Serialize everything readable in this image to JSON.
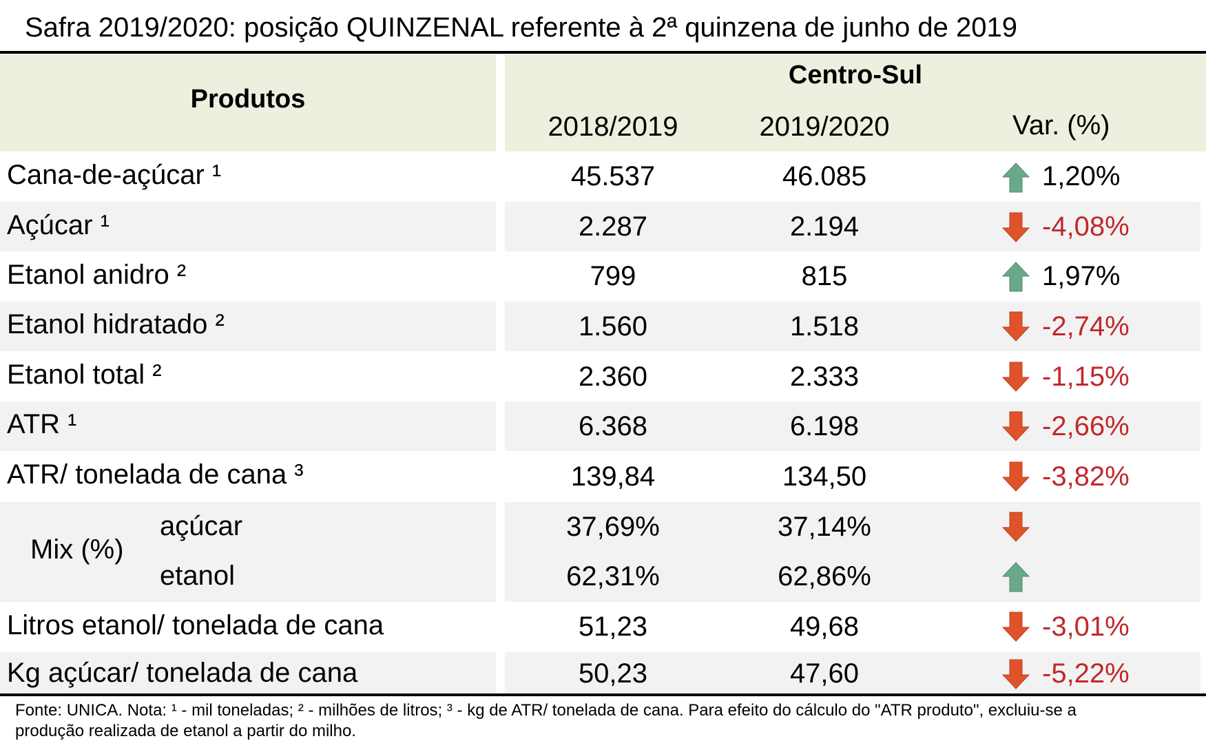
{
  "title": "Safra 2019/2020: posição QUINZENAL referente à 2ª quinzena de junho de 2019",
  "header": {
    "produtos": "Produtos",
    "region": "Centro-Sul",
    "col1": "2018/2019",
    "col2": "2019/2020",
    "col3": "Var. (%)"
  },
  "rows": [
    {
      "label": "Cana-de-açúcar ¹",
      "v1": "45.537",
      "v2": "46.085",
      "dir": "up",
      "var": "1,20%"
    },
    {
      "label": "Açúcar ¹",
      "v1": "2.287",
      "v2": "2.194",
      "dir": "down",
      "var": "-4,08%"
    },
    {
      "label": "Etanol anidro ²",
      "v1": "799",
      "v2": "815",
      "dir": "up",
      "var": "1,97%"
    },
    {
      "label": "Etanol hidratado ²",
      "v1": "1.560",
      "v2": "1.518",
      "dir": "down",
      "var": "-2,74%"
    },
    {
      "label": "Etanol total ²",
      "v1": "2.360",
      "v2": "2.333",
      "dir": "down",
      "var": "-1,15%"
    },
    {
      "label": "ATR ¹",
      "v1": "6.368",
      "v2": "6.198",
      "dir": "down",
      "var": "-2,66%"
    },
    {
      "label": "ATR/ tonelada de cana ³",
      "v1": "139,84",
      "v2": "134,50",
      "dir": "down",
      "var": "-3,82%"
    }
  ],
  "mix": {
    "label": "Mix (%)",
    "acucar": {
      "label": "açúcar",
      "v1": "37,69%",
      "v2": "37,14%",
      "dir": "down"
    },
    "etanol": {
      "label": "etanol",
      "v1": "62,31%",
      "v2": "62,86%",
      "dir": "up"
    }
  },
  "rows_after": [
    {
      "label": "Litros etanol/ tonelada de cana",
      "v1": "51,23",
      "v2": "49,68",
      "dir": "down",
      "var": "-3,01%"
    },
    {
      "label": "Kg açúcar/ tonelada de cana",
      "v1": "50,23",
      "v2": "47,60",
      "dir": "down",
      "var": "-5,22%"
    }
  ],
  "footnote": {
    "line1": "Fonte: UNICA. Nota: ¹ - mil toneladas; ² - milhões de litros; ³ - kg de ATR/ tonelada de cana. Para efeito do cálculo do \"ATR produto\", excluiu-se a",
    "line2": "produção realizada de etanol a partir do milho."
  },
  "colors": {
    "up_arrow": "#6aa88a",
    "down_arrow": "#e0532a",
    "negative_text": "#c0282b",
    "header_bg": "#ebf1de",
    "alt_row_bg": "#f2f2f2"
  },
  "icons": {
    "up": "arrow-up-icon",
    "down": "arrow-down-icon"
  }
}
